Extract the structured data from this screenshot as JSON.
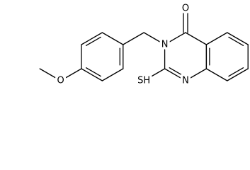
{
  "atoms": [
    "O",
    "N",
    "N",
    "SH",
    "O"
  ]
}
